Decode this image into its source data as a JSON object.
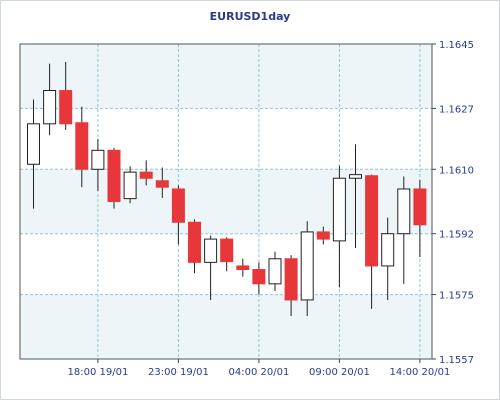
{
  "chart_data": {
    "type": "candlestick",
    "title": "EURUSD1day",
    "xlabel": "",
    "ylabel": "",
    "ylim": [
      1.1557,
      1.1645
    ],
    "y_ticks": [
      "1.1645",
      "1.1627",
      "1.1610",
      "1.1592",
      "1.1575",
      "1.1557"
    ],
    "x_ticks": [
      "18:00 19/01",
      "23:00 19/01",
      "04:00 20/01",
      "09:00 20/01",
      "14:00 20/01"
    ],
    "grid": true,
    "bull_color": "#ffffff",
    "bear_color": "#e8373a",
    "candles": [
      {
        "o": 1.16114,
        "h": 1.16295,
        "l": 1.1599,
        "c": 1.16227
      },
      {
        "o": 1.16227,
        "h": 1.16395,
        "l": 1.16195,
        "c": 1.1632
      },
      {
        "o": 1.1632,
        "h": 1.164,
        "l": 1.1621,
        "c": 1.16227
      },
      {
        "o": 1.1623,
        "h": 1.16275,
        "l": 1.1605,
        "c": 1.161
      },
      {
        "o": 1.161,
        "h": 1.16185,
        "l": 1.1604,
        "c": 1.16153
      },
      {
        "o": 1.16153,
        "h": 1.1616,
        "l": 1.1599,
        "c": 1.1601
      },
      {
        "o": 1.16018,
        "h": 1.16108,
        "l": 1.16005,
        "c": 1.16092
      },
      {
        "o": 1.16092,
        "h": 1.16125,
        "l": 1.16055,
        "c": 1.16075
      },
      {
        "o": 1.16068,
        "h": 1.16105,
        "l": 1.1602,
        "c": 1.1605
      },
      {
        "o": 1.16045,
        "h": 1.16055,
        "l": 1.1589,
        "c": 1.15952
      },
      {
        "o": 1.15952,
        "h": 1.1596,
        "l": 1.1581,
        "c": 1.1584
      },
      {
        "o": 1.1584,
        "h": 1.15915,
        "l": 1.15735,
        "c": 1.15905
      },
      {
        "o": 1.15905,
        "h": 1.1591,
        "l": 1.15815,
        "c": 1.15842
      },
      {
        "o": 1.1583,
        "h": 1.1585,
        "l": 1.158,
        "c": 1.1582
      },
      {
        "o": 1.1582,
        "h": 1.1584,
        "l": 1.1575,
        "c": 1.1578
      },
      {
        "o": 1.1578,
        "h": 1.1587,
        "l": 1.1576,
        "c": 1.1585
      },
      {
        "o": 1.1585,
        "h": 1.1586,
        "l": 1.1569,
        "c": 1.15735
      },
      {
        "o": 1.15735,
        "h": 1.15955,
        "l": 1.1569,
        "c": 1.15925
      },
      {
        "o": 1.15925,
        "h": 1.1594,
        "l": 1.1589,
        "c": 1.15905
      },
      {
        "o": 1.159,
        "h": 1.1611,
        "l": 1.1577,
        "c": 1.16075
      },
      {
        "o": 1.16075,
        "h": 1.1617,
        "l": 1.1588,
        "c": 1.16085
      },
      {
        "o": 1.16082,
        "h": 1.16085,
        "l": 1.1571,
        "c": 1.1583
      },
      {
        "o": 1.1583,
        "h": 1.15965,
        "l": 1.15735,
        "c": 1.1592
      },
      {
        "o": 1.1592,
        "h": 1.1608,
        "l": 1.1578,
        "c": 1.16045
      },
      {
        "o": 1.16045,
        "h": 1.1607,
        "l": 1.15855,
        "c": 1.15945
      }
    ]
  }
}
